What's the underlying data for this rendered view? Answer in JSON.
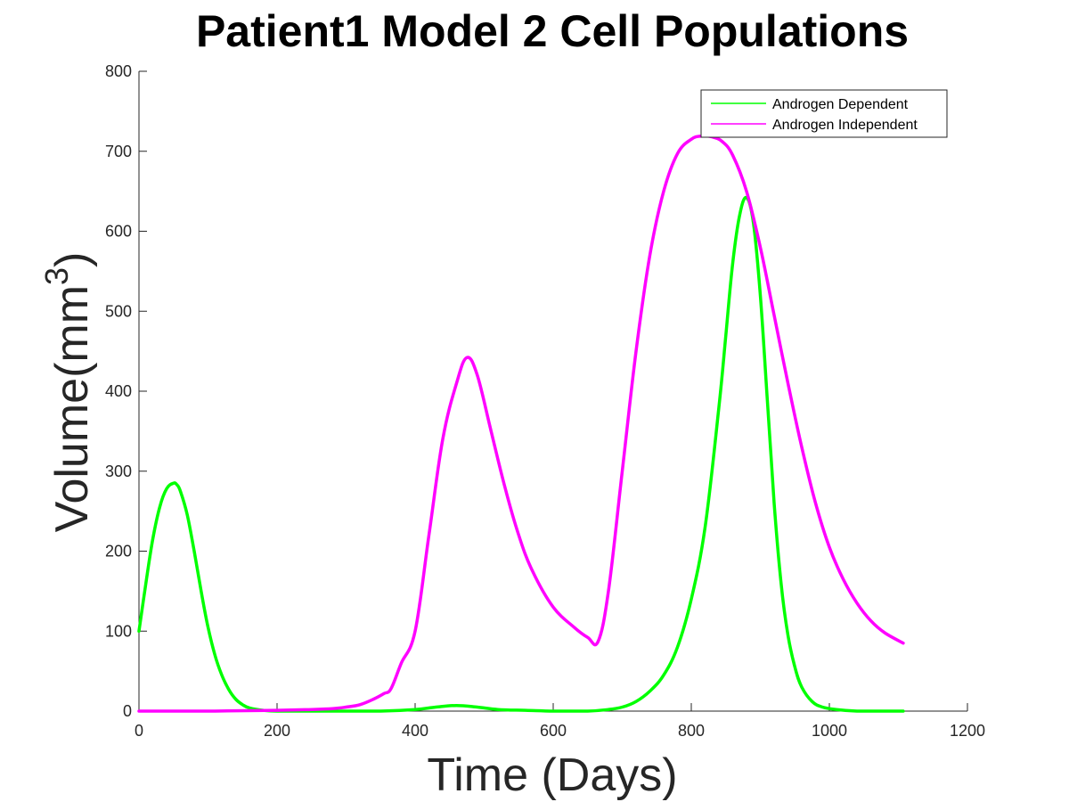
{
  "chart_data": {
    "type": "line",
    "title": "Patient1 Model 2 Cell Populations",
    "xlabel": "Time (Days)",
    "ylabel": "Volume(mm",
    "ylabel_superscript": "3",
    "ylabel_suffix": ")",
    "xlim": [
      0,
      1200
    ],
    "ylim": [
      0,
      800
    ],
    "xticks": [
      0,
      200,
      400,
      600,
      800,
      1000,
      1200
    ],
    "yticks": [
      0,
      100,
      200,
      300,
      400,
      500,
      600,
      700,
      800
    ],
    "xtick_labels": [
      "0",
      "200",
      "400",
      "600",
      "800",
      "1000",
      "1200"
    ],
    "ytick_labels": [
      "0",
      "100",
      "200",
      "300",
      "400",
      "500",
      "600",
      "700",
      "800"
    ],
    "grid": false,
    "legend_position": "top-right",
    "series": [
      {
        "name": "Androgen Dependent",
        "color": "#00ff00",
        "x": [
          0,
          10,
          20,
          30,
          40,
          50,
          55,
          60,
          70,
          80,
          90,
          100,
          110,
          120,
          130,
          140,
          150,
          160,
          180,
          200,
          250,
          300,
          350,
          400,
          430,
          460,
          490,
          520,
          560,
          600,
          650,
          680,
          700,
          720,
          740,
          760,
          780,
          800,
          820,
          840,
          850,
          860,
          870,
          880,
          890,
          900,
          910,
          920,
          930,
          940,
          950,
          960,
          975,
          990,
          1010,
          1040,
          1070,
          1107
        ],
        "y": [
          100,
          160,
          215,
          255,
          278,
          285,
          283,
          275,
          245,
          200,
          150,
          105,
          70,
          45,
          27,
          15,
          8,
          4,
          1,
          0,
          0,
          0,
          0,
          2,
          5,
          7,
          5,
          2,
          1,
          0,
          0,
          2,
          5,
          12,
          25,
          45,
          80,
          140,
          230,
          380,
          470,
          560,
          620,
          642,
          610,
          520,
          390,
          260,
          160,
          95,
          55,
          30,
          12,
          5,
          2,
          0,
          0,
          0
        ]
      },
      {
        "name": "Androgen Independent",
        "color": "#ff00ff",
        "x": [
          0,
          100,
          200,
          250,
          280,
          300,
          320,
          340,
          355,
          365,
          380,
          400,
          420,
          440,
          460,
          475,
          490,
          510,
          530,
          550,
          570,
          600,
          630,
          650,
          665,
          680,
          700,
          720,
          740,
          760,
          780,
          800,
          815,
          830,
          845,
          860,
          880,
          900,
          920,
          940,
          960,
          980,
          1000,
          1020,
          1040,
          1060,
          1080,
          1107
        ],
        "y": [
          0,
          0,
          1,
          2,
          3,
          5,
          8,
          15,
          22,
          28,
          60,
          100,
          220,
          340,
          410,
          442,
          420,
          350,
          280,
          220,
          175,
          130,
          105,
          92,
          87,
          150,
          300,
          450,
          570,
          650,
          697,
          715,
          719,
          718,
          712,
          695,
          650,
          580,
          495,
          410,
          330,
          260,
          205,
          165,
          135,
          113,
          98,
          85
        ]
      }
    ]
  }
}
